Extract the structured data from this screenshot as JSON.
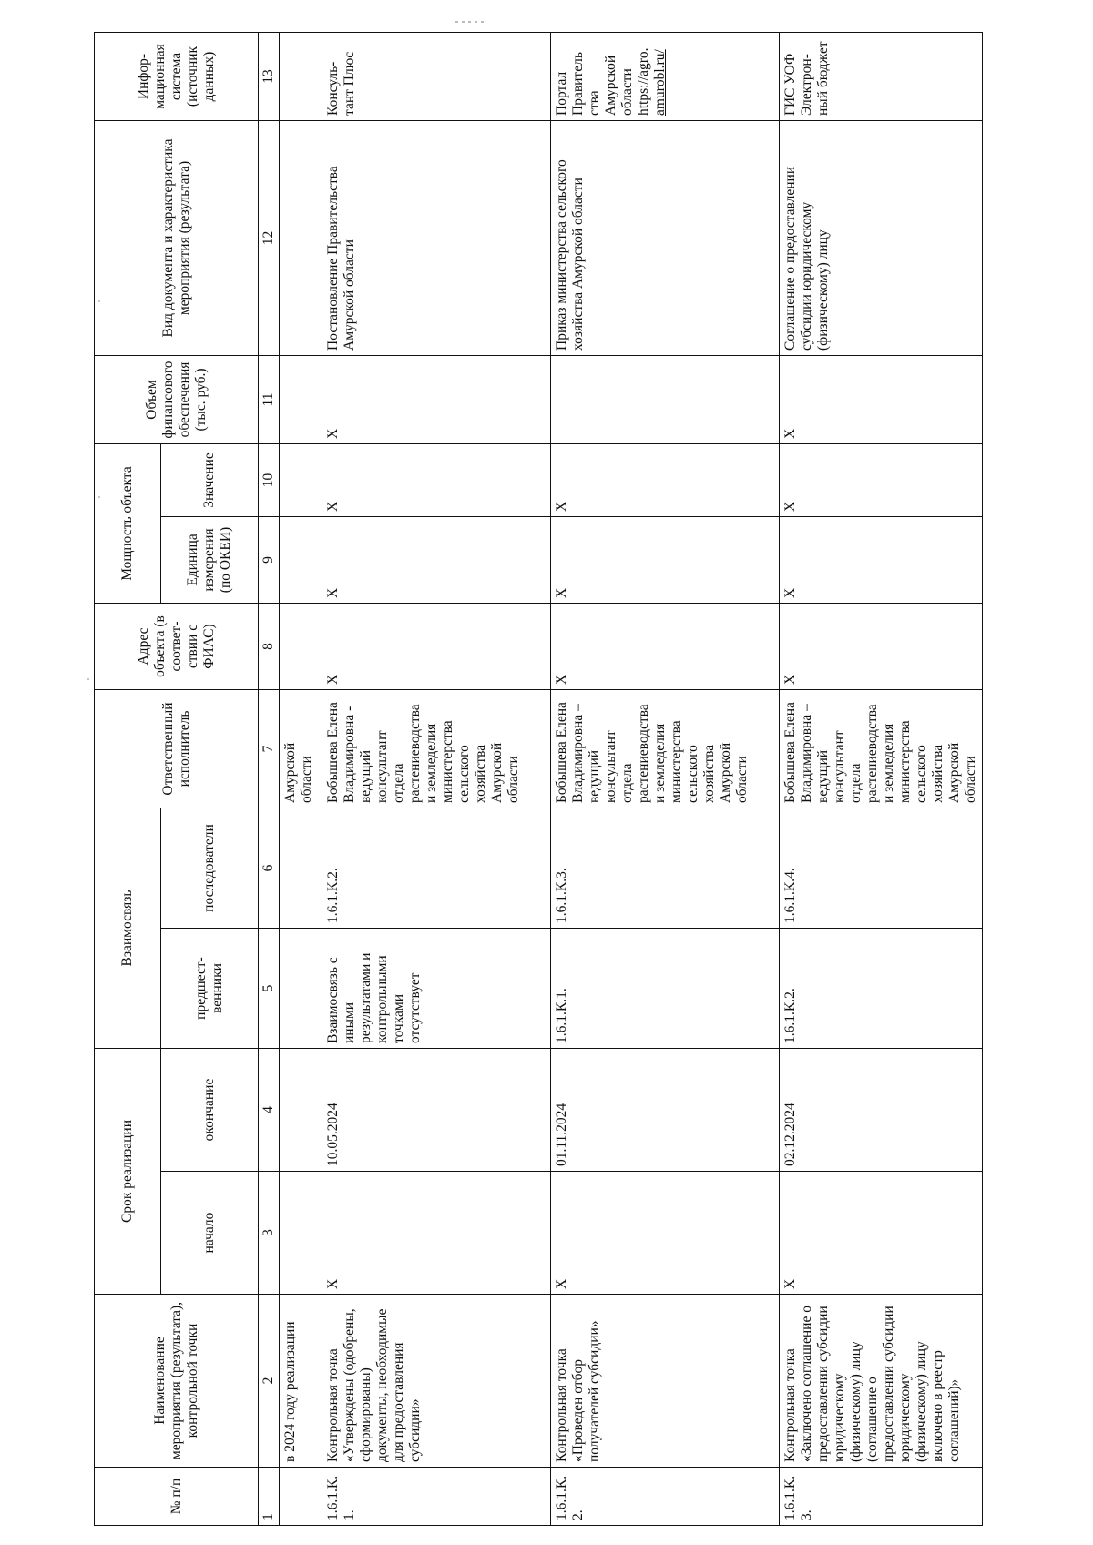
{
  "header": {
    "col1": "№ п/п",
    "col2": "Наименование мероприятия (результата), контрольной точки",
    "deadline_group": "Срок реализации",
    "col3": "начало",
    "col4": "окончание",
    "link_group": "Взаимосвязь",
    "col5": "предшест-венники",
    "col6": "последователи",
    "col7": "Ответственный исполнитель",
    "col8": "Адрес объекта (в соответ-ствии с ФИАС)",
    "capacity_group": "Мощность объекта",
    "col9": "Единица измерения (по ОКЕИ)",
    "col10": "Значение",
    "col11": "Объем финансового обеспечения (тыс. руб.)",
    "col12": "Вид документа и характеристика мероприятия (результата)",
    "col13": "Инфор-мационная система (источник данных)"
  },
  "numbers": [
    "1",
    "2",
    "3",
    "4",
    "5",
    "6",
    "7",
    "8",
    "9",
    "10",
    "11",
    "12",
    "13"
  ],
  "continuation": {
    "col2": "в 2024 году реализации",
    "col7": "Амурской области"
  },
  "rows": [
    {
      "num": "1.6.1.К.1.",
      "name": "Контрольная точка «Утверждены (одобрены, сформированы) документы, необходимые для предоставления субсидии»",
      "start": "X",
      "end": "10.05.2024",
      "predecessors": "Взаимосвязь с иными результатами и контрольными точками отсутствует",
      "successors": "1.6.1.К.2.",
      "responsible": "Бобышева Елена Владимировна - ведущий консультант отдела растениеводства и земледелия министерства сельского хозяйства Амурской области",
      "address": "X",
      "unit": "X",
      "value": "X",
      "finance": "X",
      "doc": "Постановление Правительства Амурской области",
      "system": "Консуль-тант Плюс",
      "system_link": ""
    },
    {
      "num": "1.6.1.К.2.",
      "name": "Контрольная точка «Проведен отбор получателей субсидии»",
      "start": "X",
      "end": "01.11.2024",
      "predecessors": "1.6.1.К.1.",
      "successors": "1.6.1.К.3.",
      "responsible": "Бобышева Елена Владимировна – ведущий консультант отдела растениеводства и земледелия министерства сельского хозяйства Амурской области",
      "address": "X",
      "unit": "X",
      "value": "X",
      "finance": "",
      "doc": "Приказ министерства сельского хозяйства Амурской области",
      "system": "Портал Правитель ства Амурской области",
      "system_link": "https://agro. amurobl.ru/"
    },
    {
      "num": "1.6.1.К.3.",
      "name": "Контрольная точка «Заключено соглашение о предоставлении субсидии юридическому (физическому) лицу (соглашение о предоставлении субсидии юридическому (физическому) лицу включено в реестр соглашений)»",
      "start": "X",
      "end": "02.12.2024",
      "predecessors": "1.6.1.К.2.",
      "successors": "1.6.1.К.4.",
      "responsible": "Бобышева Елена Владимировна – ведущий консультант отдела растениеводства и земледелия министерства сельского хозяйства Амурской области",
      "address": "X",
      "unit": "X",
      "value": "X",
      "finance": "X",
      "doc": "Соглашение о предоставлении субсидии юридическому (физическому) лицу",
      "system": "ГИС УОФ Электрон-ный бюджет",
      "system_link": ""
    }
  ]
}
